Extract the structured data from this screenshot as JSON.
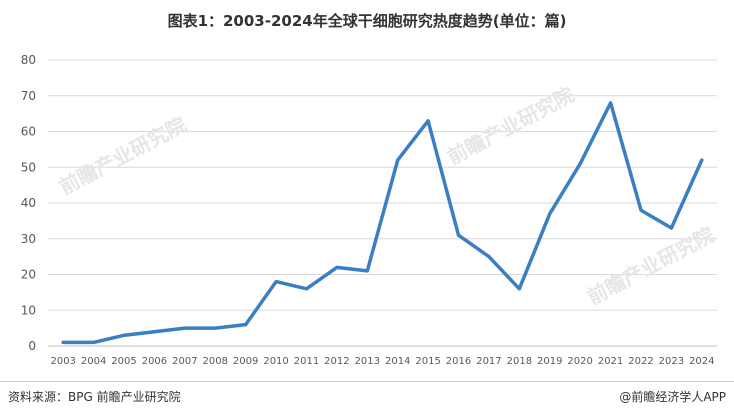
{
  "title": "图表1：2003-2024年全球干细胞研究热度趋势(单位：篇)",
  "source": "资料来源：BPG 前瞻产业研究院",
  "brand": "@前瞻经济学人APP",
  "watermark": "前瞻产业研究院",
  "colors": {
    "line": "#3a7fc4",
    "grid": "#d9d9d9",
    "axis": "#bfbfbf"
  },
  "chart_data": {
    "type": "line",
    "title": "图表1：2003-2024年全球干细胞研究热度趋势(单位：篇)",
    "xlabel": "",
    "ylabel": "",
    "ylim": [
      0,
      80
    ],
    "yticks": [
      0,
      10,
      20,
      30,
      40,
      50,
      60,
      70,
      80
    ],
    "grid": true,
    "legend": "none",
    "categories": [
      "2003",
      "2004",
      "2005",
      "2006",
      "2007",
      "2008",
      "2009",
      "2010",
      "2011",
      "2012",
      "2013",
      "2014",
      "2015",
      "2016",
      "2017",
      "2018",
      "2019",
      "2020",
      "2021",
      "2022",
      "2023",
      "2024"
    ],
    "series": [
      {
        "values": [
          1,
          1,
          3,
          4,
          5,
          5,
          6,
          18,
          16,
          22,
          21,
          52,
          63,
          31,
          25,
          16,
          37,
          51,
          68,
          38,
          33,
          52
        ]
      }
    ]
  }
}
